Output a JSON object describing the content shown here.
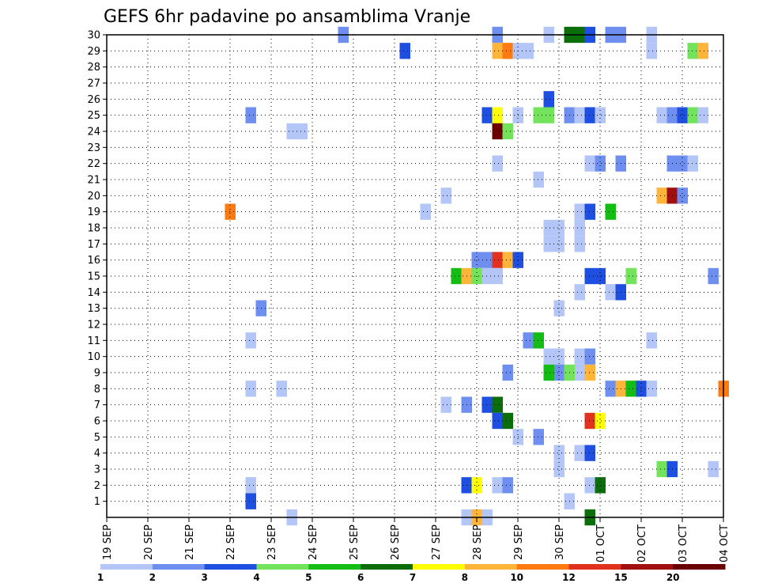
{
  "title": "GEFS 6hr padavine po ansamblima Vranje",
  "chart_data": {
    "type": "heatmap",
    "title": "GEFS 6hr padavine po ansamblima Vranje",
    "xlabel": "",
    "ylabel": "",
    "x_ticks": [
      "19 SEP",
      "20 SEP",
      "21 SEP",
      "22 SEP",
      "23 SEP",
      "24 SEP",
      "25 SEP",
      "26 SEP",
      "27 SEP",
      "28 SEP",
      "29 SEP",
      "30 SEP",
      "01 OCT",
      "02 OCT",
      "03 OCT",
      "04 OCT"
    ],
    "y_ticks": [
      "1",
      "2",
      "3",
      "4",
      "5",
      "6",
      "7",
      "8",
      "9",
      "10",
      "11",
      "12",
      "13",
      "14",
      "15",
      "16",
      "17",
      "18",
      "19",
      "20",
      "21",
      "22",
      "23",
      "24",
      "25",
      "26",
      "27",
      "28",
      "29",
      "30"
    ],
    "xlim": [
      0,
      15
    ],
    "ylim": [
      0,
      30
    ],
    "grid": true,
    "colorbar": {
      "labels": [
        "1",
        "2",
        "3",
        "4",
        "5",
        "6",
        "7",
        "8",
        "10",
        "12",
        "15",
        "20"
      ],
      "colors": [
        "#b3c6f7",
        "#6e8ff0",
        "#1f4fe0",
        "#72e35b",
        "#13bd13",
        "#0b6e0b",
        "#ffff00",
        "#ffb43a",
        "#ff7a10",
        "#e0321e",
        "#a01010",
        "#6b0000"
      ]
    },
    "points": [
      {
        "x": 3.5,
        "y": 0,
        "v": 3
      },
      {
        "x": 3.5,
        "y": 1,
        "v": 1
      },
      {
        "x": 5.75,
        "y": 29,
        "v": 2
      },
      {
        "x": 7.25,
        "y": 28,
        "v": 3
      },
      {
        "x": 9.5,
        "y": 29,
        "v": 2
      },
      {
        "x": 9.5,
        "y": 28,
        "v": 8
      },
      {
        "x": 9.75,
        "y": 28,
        "v": 10
      },
      {
        "x": 10,
        "y": 28,
        "v": 1
      },
      {
        "x": 10.25,
        "y": 28,
        "v": 1
      },
      {
        "x": 10.75,
        "y": 29,
        "v": 1
      },
      {
        "x": 11.25,
        "y": 29,
        "v": 6
      },
      {
        "x": 11.5,
        "y": 29,
        "v": 6
      },
      {
        "x": 11.75,
        "y": 29,
        "v": 3
      },
      {
        "x": 12.25,
        "y": 29,
        "v": 2
      },
      {
        "x": 12.5,
        "y": 29,
        "v": 2
      },
      {
        "x": 13.25,
        "y": 29,
        "v": 1
      },
      {
        "x": 13.25,
        "y": 28,
        "v": 1
      },
      {
        "x": 14.25,
        "y": 28,
        "v": 4
      },
      {
        "x": 14.5,
        "y": 28,
        "v": 8
      },
      {
        "x": 10.75,
        "y": 25,
        "v": 3
      },
      {
        "x": 3.5,
        "y": 24,
        "v": 2
      },
      {
        "x": 9.25,
        "y": 24,
        "v": 3
      },
      {
        "x": 9.5,
        "y": 24,
        "v": 7
      },
      {
        "x": 10,
        "y": 24,
        "v": 1
      },
      {
        "x": 10.5,
        "y": 24,
        "v": 4
      },
      {
        "x": 10.75,
        "y": 24,
        "v": 4
      },
      {
        "x": 11.25,
        "y": 24,
        "v": 2
      },
      {
        "x": 11.5,
        "y": 24,
        "v": 1
      },
      {
        "x": 11.75,
        "y": 24,
        "v": 3
      },
      {
        "x": 12,
        "y": 24,
        "v": 1
      },
      {
        "x": 13.5,
        "y": 24,
        "v": 1
      },
      {
        "x": 13.75,
        "y": 24,
        "v": 2
      },
      {
        "x": 14,
        "y": 24,
        "v": 3
      },
      {
        "x": 14.25,
        "y": 24,
        "v": 4
      },
      {
        "x": 14.5,
        "y": 24,
        "v": 1
      },
      {
        "x": 4.5,
        "y": 23,
        "v": 1
      },
      {
        "x": 4.75,
        "y": 23,
        "v": 1
      },
      {
        "x": 9.5,
        "y": 23,
        "v": 20
      },
      {
        "x": 9.75,
        "y": 23,
        "v": 4
      },
      {
        "x": 9.5,
        "y": 21,
        "v": 1
      },
      {
        "x": 11.75,
        "y": 21,
        "v": 1
      },
      {
        "x": 12,
        "y": 21,
        "v": 2
      },
      {
        "x": 12.5,
        "y": 21,
        "v": 2
      },
      {
        "x": 13.75,
        "y": 21,
        "v": 2
      },
      {
        "x": 14,
        "y": 21,
        "v": 2
      },
      {
        "x": 14.25,
        "y": 21,
        "v": 1
      },
      {
        "x": 10.5,
        "y": 20,
        "v": 1
      },
      {
        "x": 8.25,
        "y": 19,
        "v": 1
      },
      {
        "x": 13.5,
        "y": 19,
        "v": 8
      },
      {
        "x": 13.75,
        "y": 19,
        "v": 15
      },
      {
        "x": 14,
        "y": 19,
        "v": 2
      },
      {
        "x": 3,
        "y": 18,
        "v": 10
      },
      {
        "x": 11.5,
        "y": 18,
        "v": 1
      },
      {
        "x": 11.75,
        "y": 18,
        "v": 3
      },
      {
        "x": 12.25,
        "y": 18,
        "v": 5
      },
      {
        "x": 7.75,
        "y": 18,
        "v": 1
      },
      {
        "x": 10.75,
        "y": 17,
        "v": 1
      },
      {
        "x": 11,
        "y": 17,
        "v": 1
      },
      {
        "x": 11.5,
        "y": 17,
        "v": 1
      },
      {
        "x": 10.75,
        "y": 16,
        "v": 1
      },
      {
        "x": 11,
        "y": 16,
        "v": 1
      },
      {
        "x": 11.5,
        "y": 16,
        "v": 1
      },
      {
        "x": 9,
        "y": 15,
        "v": 2
      },
      {
        "x": 9.25,
        "y": 15,
        "v": 2
      },
      {
        "x": 9.5,
        "y": 15,
        "v": 12
      },
      {
        "x": 9.75,
        "y": 15,
        "v": 8
      },
      {
        "x": 10,
        "y": 15,
        "v": 3
      },
      {
        "x": 8.5,
        "y": 14,
        "v": 5
      },
      {
        "x": 8.75,
        "y": 14,
        "v": 8
      },
      {
        "x": 9,
        "y": 14,
        "v": 4
      },
      {
        "x": 9.25,
        "y": 14,
        "v": 1
      },
      {
        "x": 9.5,
        "y": 14,
        "v": 1
      },
      {
        "x": 11.75,
        "y": 14,
        "v": 3
      },
      {
        "x": 12,
        "y": 14,
        "v": 3
      },
      {
        "x": 12.75,
        "y": 14,
        "v": 4
      },
      {
        "x": 14.75,
        "y": 14,
        "v": 2
      },
      {
        "x": 11.5,
        "y": 13,
        "v": 1
      },
      {
        "x": 12.25,
        "y": 13,
        "v": 1
      },
      {
        "x": 12.5,
        "y": 13,
        "v": 3
      },
      {
        "x": 3.75,
        "y": 12,
        "v": 2
      },
      {
        "x": 11,
        "y": 12,
        "v": 1
      },
      {
        "x": 10.25,
        "y": 10,
        "v": 2
      },
      {
        "x": 10.5,
        "y": 10,
        "v": 5
      },
      {
        "x": 13.25,
        "y": 10,
        "v": 1
      },
      {
        "x": 3.5,
        "y": 10,
        "v": 1
      },
      {
        "x": 10.75,
        "y": 9,
        "v": 1
      },
      {
        "x": 11,
        "y": 9,
        "v": 1
      },
      {
        "x": 11.5,
        "y": 9,
        "v": 1
      },
      {
        "x": 11.75,
        "y": 9,
        "v": 2
      },
      {
        "x": 10.75,
        "y": 8,
        "v": 1
      },
      {
        "x": 11,
        "y": 8,
        "v": 1
      },
      {
        "x": 11.5,
        "y": 8,
        "v": 1
      },
      {
        "x": 9.75,
        "y": 8,
        "v": 2
      },
      {
        "x": 10.75,
        "y": 8,
        "v": 1
      },
      {
        "x": 11,
        "y": 8,
        "v": 2
      },
      {
        "x": 10.75,
        "y": 8,
        "v": 5
      },
      {
        "x": 11.25,
        "y": 8,
        "v": 4
      },
      {
        "x": 11.75,
        "y": 8,
        "v": 8
      },
      {
        "x": 3.5,
        "y": 7,
        "v": 1
      },
      {
        "x": 4.25,
        "y": 7,
        "v": 1
      },
      {
        "x": 12.25,
        "y": 7,
        "v": 2
      },
      {
        "x": 12.5,
        "y": 7,
        "v": 8
      },
      {
        "x": 12.75,
        "y": 7,
        "v": 5
      },
      {
        "x": 13,
        "y": 7,
        "v": 3
      },
      {
        "x": 13.25,
        "y": 7,
        "v": 1
      },
      {
        "x": 15,
        "y": 7,
        "v": 10
      },
      {
        "x": 8.25,
        "y": 6,
        "v": 1
      },
      {
        "x": 8.75,
        "y": 6,
        "v": 2
      },
      {
        "x": 9.25,
        "y": 6,
        "v": 3
      },
      {
        "x": 9.5,
        "y": 6,
        "v": 6
      },
      {
        "x": 9.5,
        "y": 5,
        "v": 3
      },
      {
        "x": 9.75,
        "y": 5,
        "v": 6
      },
      {
        "x": 11.75,
        "y": 5,
        "v": 12
      },
      {
        "x": 12,
        "y": 5,
        "v": 7
      },
      {
        "x": 10,
        "y": 4,
        "v": 1
      },
      {
        "x": 10.5,
        "y": 4,
        "v": 2
      },
      {
        "x": 11.5,
        "y": 3,
        "v": 1
      },
      {
        "x": 11.75,
        "y": 3,
        "v": 3
      },
      {
        "x": 11,
        "y": 3,
        "v": 1
      },
      {
        "x": 11,
        "y": 2,
        "v": 1
      },
      {
        "x": 13.5,
        "y": 2,
        "v": 4
      },
      {
        "x": 13.75,
        "y": 2,
        "v": 3
      },
      {
        "x": 14.75,
        "y": 2,
        "v": 1
      },
      {
        "x": 3.5,
        "y": 1,
        "v": 1
      },
      {
        "x": 8.75,
        "y": 1,
        "v": 3
      },
      {
        "x": 9,
        "y": 1,
        "v": 7
      },
      {
        "x": 9.5,
        "y": 1,
        "v": 1
      },
      {
        "x": 9.75,
        "y": 1,
        "v": 2
      },
      {
        "x": 11.75,
        "y": 1,
        "v": 1
      },
      {
        "x": 12,
        "y": 1,
        "v": 6
      },
      {
        "x": 11.25,
        "y": 0,
        "v": 1
      },
      {
        "x": 4.5,
        "y": -1,
        "v": 1
      },
      {
        "x": 8.75,
        "y": -1,
        "v": 1
      },
      {
        "x": 9,
        "y": -1,
        "v": 8
      },
      {
        "x": 9.25,
        "y": -1,
        "v": 1
      },
      {
        "x": 11.75,
        "y": -1,
        "v": 6
      }
    ]
  }
}
